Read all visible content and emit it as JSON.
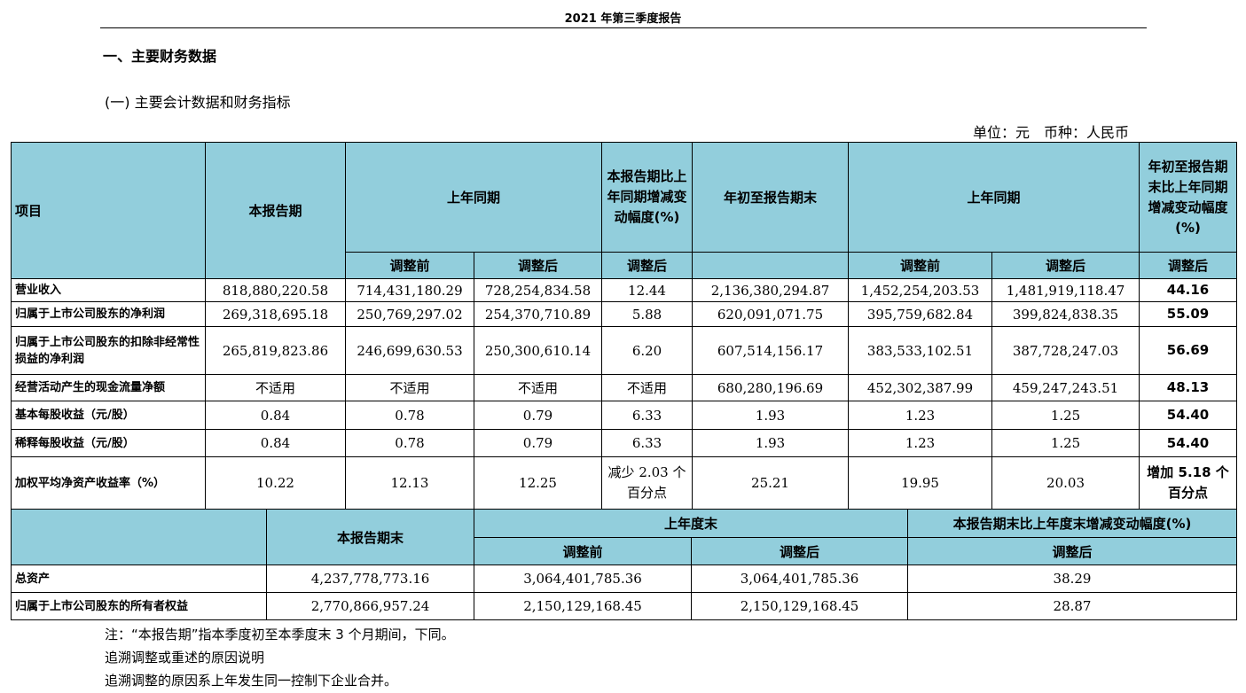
{
  "header": {
    "title": "2021 年第三季度报告"
  },
  "section": {
    "heading": "一、主要财务数据",
    "subheading": "(一) 主要会计数据和财务指标",
    "unit": "单位：元　币种：人民币"
  },
  "table1": {
    "headers": {
      "item": "项目",
      "current": "本报告期",
      "prior": "上年同期",
      "change": "本报告期比上年同期增减变动幅度(%)",
      "ytd": "年初至报告期末",
      "prior_ytd": "上年同期",
      "ytd_change": "年初至报告期末比上年同期增减变动幅度(%)",
      "before": "调整前",
      "after": "调整后",
      "change_after": "调整后",
      "before2": "调整前",
      "after2": "调整后",
      "ytd_change_after": "调整后"
    },
    "rows": [
      {
        "label": "营业收入",
        "v": [
          "818,880,220.58",
          "714,431,180.29",
          "728,254,834.58",
          "12.44",
          "2,136,380,294.87",
          "1,452,254,203.53",
          "1,481,919,118.47",
          "44.16"
        ]
      },
      {
        "label": "归属于上市公司股东的净利润",
        "v": [
          "269,318,695.18",
          "250,769,297.02",
          "254,370,710.89",
          "5.88",
          "620,091,071.75",
          "395,759,682.84",
          "399,824,838.35",
          "55.09"
        ]
      },
      {
        "label": "归属于上市公司股东的扣除非经常性损益的净利润",
        "v": [
          "265,819,823.86",
          "246,699,630.53",
          "250,300,610.14",
          "6.20",
          "607,514,156.17",
          "383,533,102.51",
          "387,728,247.03",
          "56.69"
        ]
      },
      {
        "label": "经营活动产生的现金流量净额",
        "v": [
          "不适用",
          "不适用",
          "不适用",
          "不适用",
          "680,280,196.69",
          "452,302,387.99",
          "459,247,243.51",
          "48.13"
        ]
      },
      {
        "label": "基本每股收益（元/股）",
        "v": [
          "0.84",
          "0.78",
          "0.79",
          "6.33",
          "1.93",
          "1.23",
          "1.25",
          "54.40"
        ]
      },
      {
        "label": "稀释每股收益（元/股）",
        "v": [
          "0.84",
          "0.78",
          "0.79",
          "6.33",
          "1.93",
          "1.23",
          "1.25",
          "54.40"
        ]
      },
      {
        "label": "加权平均净资产收益率（%）",
        "v": [
          "10.22",
          "12.13",
          "12.25",
          "减少 2.03 个百分点",
          "25.21",
          "19.95",
          "20.03",
          "增加 5.18 个百分点"
        ]
      }
    ]
  },
  "table2": {
    "headers": {
      "current_end": "本报告期末",
      "prior_end": "上年度末",
      "change": "本报告期末比上年度末增减变动幅度(%)",
      "before": "调整前",
      "after": "调整后",
      "change_after": "调整后"
    },
    "rows": [
      {
        "label": "总资产",
        "v": [
          "4,237,778,773.16",
          "3,064,401,785.36",
          "3,064,401,785.36",
          "38.29"
        ]
      },
      {
        "label": "归属于上市公司股东的所有者权益",
        "v": [
          "2,770,866,957.24",
          "2,150,129,168.45",
          "2,150,129,168.45",
          "28.87"
        ]
      }
    ]
  },
  "notes": [
    "注：“本报告期”指本季度初至本季度末 3 个月期间，下同。",
    "追溯调整或重述的原因说明",
    "追溯调整的原因系上年发生同一控制下企业合并。"
  ]
}
